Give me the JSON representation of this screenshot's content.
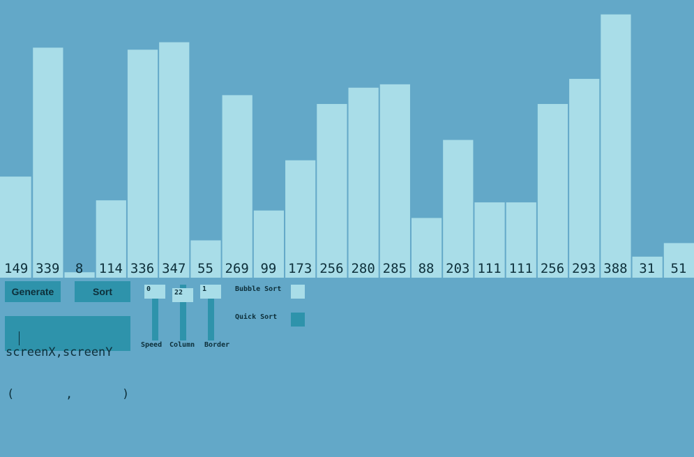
{
  "chart_data": {
    "type": "bar",
    "values": [
      149,
      339,
      8,
      114,
      336,
      347,
      55,
      269,
      99,
      173,
      256,
      280,
      285,
      88,
      203,
      111,
      111,
      256,
      293,
      388,
      31,
      51
    ],
    "ylim": [
      0,
      400
    ],
    "bar_color": "#a9dde8",
    "label_color": "#0d2f3a"
  },
  "controls": {
    "generate_label": "Generate",
    "sort_label": "Sort",
    "coords_label": "screenX,screenY",
    "coords_open": "(",
    "coords_sep": ",",
    "coords_close": ")"
  },
  "sliders": [
    {
      "label": "Speed",
      "value": "0",
      "level": 0.0
    },
    {
      "label": "Column",
      "value": "22",
      "level": 0.1
    },
    {
      "label": "Border",
      "value": "1",
      "level": 0.0
    }
  ],
  "algorithms": [
    {
      "label": "Bubble Sort",
      "color": "#a9dde8",
      "selected": true
    },
    {
      "label": "Quick Sort",
      "color": "#2e93ab",
      "selected": false
    }
  ],
  "colors": {
    "background": "#63a8c8",
    "control": "#2e93ab",
    "bar": "#a9dde8"
  }
}
